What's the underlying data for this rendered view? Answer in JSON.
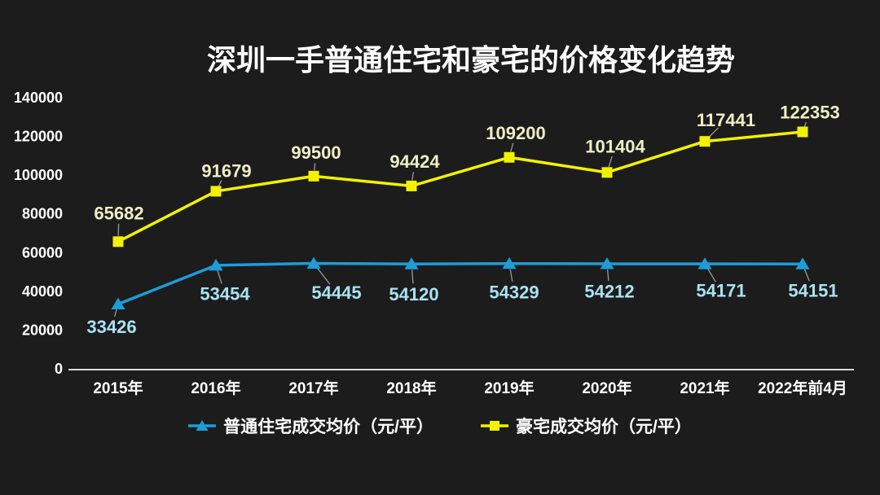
{
  "page": {
    "background": "#1C1C1C",
    "text_color": "#FFFFFF"
  },
  "chart_data": {
    "type": "line",
    "title": "深圳一手普通住宅和豪宅的价格变化趋势",
    "categories": [
      "2015年",
      "2016年",
      "2017年",
      "2018年",
      "2019年",
      "2020年",
      "2021年",
      "2022年前4月"
    ],
    "series": [
      {
        "name": "普通住宅成交均价（元/平）",
        "values": [
          33426,
          53454,
          54445,
          54120,
          54329,
          54212,
          54171,
          54151
        ],
        "color": "#1E9CD8",
        "label_color": "#A9E2F2",
        "marker": "triangle",
        "label_offsets": [
          [
            -8,
            28
          ],
          [
            11,
            35
          ],
          [
            28,
            36
          ],
          [
            3,
            37
          ],
          [
            6,
            35
          ],
          [
            3,
            34
          ],
          [
            20,
            33
          ],
          [
            13,
            33
          ]
        ]
      },
      {
        "name": "豪宅成交均价（元/平）",
        "values": [
          65682,
          91679,
          99500,
          94424,
          109200,
          101404,
          117441,
          122353
        ],
        "color": "#F2F200",
        "label_color": "#EFEFC6",
        "marker": "square",
        "label_offsets": [
          [
            1,
            -35
          ],
          [
            13,
            -25
          ],
          [
            3,
            -29
          ],
          [
            4,
            -30
          ],
          [
            8,
            -30
          ],
          [
            10,
            -32
          ],
          [
            26,
            -26
          ],
          [
            9,
            -24
          ]
        ]
      }
    ],
    "ylim": [
      0,
      140000
    ],
    "ytick_step": 20000,
    "yticks": [
      "0",
      "20000",
      "40000",
      "60000",
      "80000",
      "100000",
      "120000",
      "140000"
    ],
    "grid": false,
    "legend_position": "bottom",
    "axis_color": "#D9D9D9",
    "leader_line_color": "#9A9A9A"
  }
}
